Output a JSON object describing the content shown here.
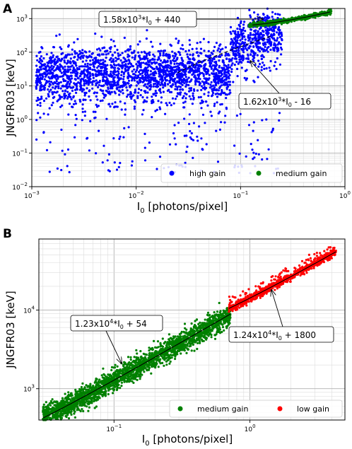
{
  "chart_data": [
    {
      "panel_label": "A",
      "type": "scatter",
      "xscale": "log",
      "yscale": "log",
      "xlim": [
        0.001,
        1
      ],
      "ylim": [
        0.01,
        2000
      ],
      "xlabel": "I",
      "xlabel_sub": "0",
      "xlabel_rest": " [photons/pixel]",
      "ylabel": "JNGFR03 [keV]",
      "x_ticks": [
        0.001,
        0.01,
        0.1,
        1
      ],
      "x_tick_labels": [
        {
          "base": "10",
          "exp": "−3"
        },
        {
          "base": "10",
          "exp": "−2"
        },
        {
          "base": "10",
          "exp": "−1"
        },
        {
          "base": "10",
          "exp": "0"
        }
      ],
      "y_ticks": [
        0.01,
        0.1,
        1,
        10,
        100,
        1000
      ],
      "y_tick_labels": [
        {
          "base": "10",
          "exp": "−2"
        },
        {
          "base": "10",
          "exp": "−1"
        },
        {
          "base": "10",
          "exp": "0"
        },
        {
          "base": "10",
          "exp": "1"
        },
        {
          "base": "10",
          "exp": "2"
        },
        {
          "base": "10",
          "exp": "3"
        }
      ],
      "grid": true,
      "legend_position": "lower-right",
      "series": [
        {
          "name": "high gain",
          "color": "#0000ff",
          "cloud": {
            "x_range": [
              0.001,
              0.25
            ],
            "slope": 1620,
            "intercept": -16,
            "note_level": "wide scatter"
          }
        },
        {
          "name": "medium gain",
          "color": "#008000",
          "cloud": {
            "x_range": [
              0.12,
              0.75
            ],
            "slope": 1580,
            "intercept": 440
          }
        }
      ],
      "fits": [
        {
          "style": "dashed",
          "x_range": [
            0.025,
            0.2
          ],
          "slope": 1620,
          "intercept": -16
        },
        {
          "style": "solid",
          "x_range": [
            0.13,
            0.72
          ],
          "slope": 1580,
          "intercept": 440
        }
      ],
      "annotations": [
        {
          "pre": "1.58x10",
          "sup": "3",
          "mid": "*I",
          "sub": "0",
          "post": " + 440"
        },
        {
          "pre": "1.62x10",
          "sup": "3",
          "mid": "*I",
          "sub": "0",
          "post": " - 16"
        }
      ]
    },
    {
      "panel_label": "B",
      "type": "scatter",
      "xscale": "log",
      "yscale": "log",
      "xlim": [
        0.028,
        5
      ],
      "ylim": [
        400,
        80000
      ],
      "xlabel": "I",
      "xlabel_sub": "0",
      "xlabel_rest": " [photons/pixel]",
      "ylabel": "JNGFR03 [keV]",
      "x_ticks": [
        0.1,
        1
      ],
      "x_tick_labels": [
        {
          "base": "10",
          "exp": "−1"
        },
        {
          "base": "10",
          "exp": "0"
        }
      ],
      "y_ticks": [
        1000,
        10000
      ],
      "y_tick_labels": [
        {
          "base": "10",
          "exp": "3"
        },
        {
          "base": "10",
          "exp": "4"
        }
      ],
      "grid": true,
      "legend_position": "lower-right",
      "series": [
        {
          "name": "medium gain",
          "color": "#008000",
          "cloud": {
            "x_range": [
              0.03,
              0.72
            ],
            "slope": 12300,
            "intercept": 54
          }
        },
        {
          "name": "low gain",
          "color": "#ff0000",
          "cloud": {
            "x_range": [
              0.7,
              4.3
            ],
            "slope": 12400,
            "intercept": 1800
          }
        }
      ],
      "fits": [
        {
          "style": "solid",
          "x_range": [
            0.03,
            0.72
          ],
          "slope": 12300,
          "intercept": 54
        },
        {
          "style": "solid",
          "x_range": [
            0.7,
            4.3
          ],
          "slope": 12400,
          "intercept": 1800
        }
      ],
      "annotations": [
        {
          "pre": "1.23x10",
          "sup": "4",
          "mid": "*I",
          "sub": "0",
          "post": " + 54"
        },
        {
          "pre": "1.24x10",
          "sup": "4",
          "mid": "*I",
          "sub": "0",
          "post": " + 1800"
        }
      ]
    }
  ]
}
